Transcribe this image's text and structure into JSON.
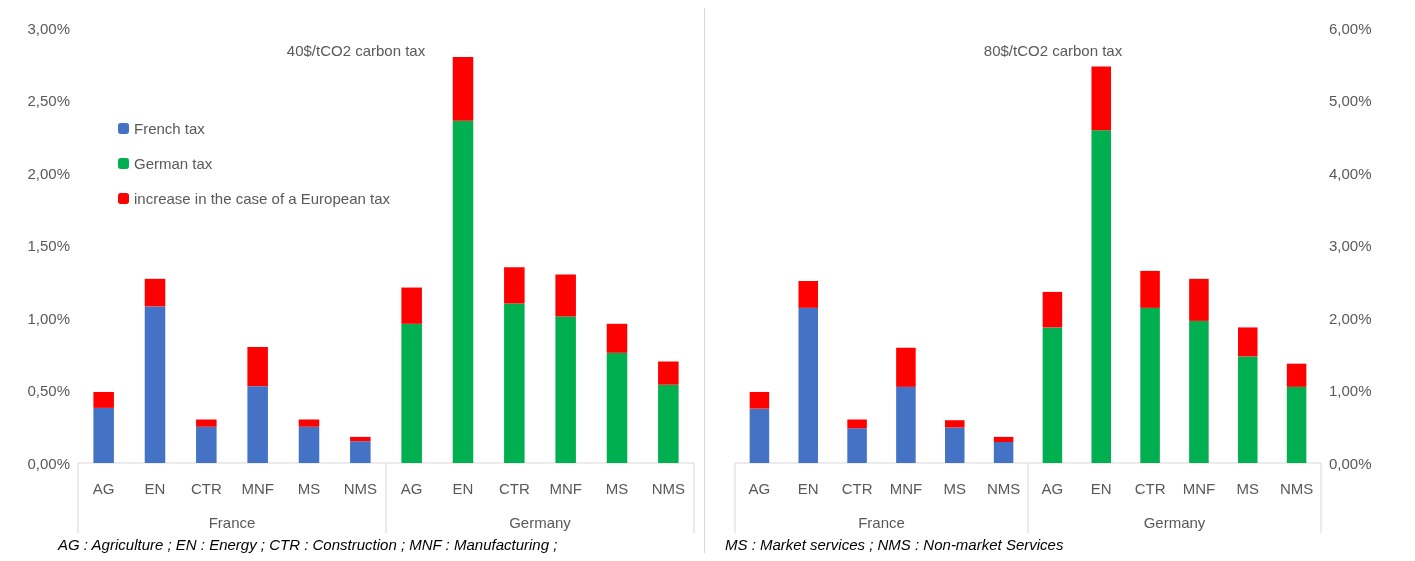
{
  "chart_data": [
    {
      "type": "bar",
      "title": "40$/tCO2 carbon tax",
      "stacked": true,
      "legend": "top left",
      "categories": [
        "AG",
        "EN",
        "CTR",
        "MNF",
        "MS",
        "NMS",
        "AG",
        "EN",
        "CTR",
        "MNF",
        "MS",
        "NMS"
      ],
      "ylim": [
        0,
        3
      ],
      "yticks": [
        {
          "value": 0,
          "label": "0,00%"
        },
        {
          "value": 0.5,
          "label": "0,50%"
        },
        {
          "value": 1,
          "label": "1,00%"
        },
        {
          "value": 1.5,
          "label": "1,50%"
        },
        {
          "value": 2,
          "label": "2,00%"
        },
        {
          "value": 2.5,
          "label": "2,50%"
        },
        {
          "value": 3,
          "label": "3,00%"
        }
      ],
      "series": [
        {
          "name": "French tax",
          "color": "#4472c4",
          "values": [
            0.38,
            1.08,
            0.25,
            0.53,
            0.25,
            0.15,
            null,
            null,
            null,
            null,
            null,
            null
          ]
        },
        {
          "name": "German tax",
          "color": "#00b050",
          "values": [
            null,
            null,
            null,
            null,
            null,
            null,
            0.96,
            2.36,
            1.1,
            1.01,
            0.76,
            0.54
          ]
        },
        {
          "name": "increase in the case of a European tax",
          "color": "#ff0000",
          "values": [
            0.11,
            0.19,
            0.05,
            0.27,
            0.05,
            0.03,
            0.25,
            0.44,
            0.25,
            0.29,
            0.2,
            0.16
          ]
        }
      ],
      "annotations": [
        "France",
        "Germany",
        "AG : Agriculture ; EN : Energy ; CTR : Construction ; MNF : Manufacturing ;"
      ]
    },
    {
      "type": "bar",
      "title": "80$/tCO2 carbon tax",
      "stacked": true,
      "categories": [
        "AG",
        "EN",
        "CTR",
        "MNF",
        "MS",
        "NMS",
        "AG",
        "EN",
        "CTR",
        "MNF",
        "MS",
        "NMS"
      ],
      "y2lim": [
        0,
        6
      ],
      "y2ticks": [
        {
          "value": 0,
          "label": "0,00%"
        },
        {
          "value": 1,
          "label": "1,00%"
        },
        {
          "value": 2,
          "label": "2,00%"
        },
        {
          "value": 3,
          "label": "3,00%"
        },
        {
          "value": 4,
          "label": "4,00%"
        },
        {
          "value": 5,
          "label": "5,00%"
        },
        {
          "value": 6,
          "label": "6,00%"
        }
      ],
      "series": [
        {
          "axis": "y2",
          "color": "#4472c4",
          "values": [
            0.75,
            2.14,
            0.48,
            1.05,
            0.49,
            0.29,
            null,
            null,
            null,
            null,
            null,
            null
          ]
        },
        {
          "axis": "y2",
          "color": "#00b050",
          "values": [
            null,
            null,
            null,
            null,
            null,
            null,
            1.87,
            4.59,
            2.14,
            1.96,
            1.47,
            1.05
          ]
        },
        {
          "axis": "y2",
          "color": "#ff0000",
          "values": [
            0.23,
            0.37,
            0.12,
            0.54,
            0.1,
            0.07,
            0.49,
            0.88,
            0.51,
            0.58,
            0.4,
            0.32
          ]
        }
      ],
      "annotations": [
        "France",
        "Germany",
        "MS : Market services ; NMS : Non-market Services"
      ]
    }
  ]
}
